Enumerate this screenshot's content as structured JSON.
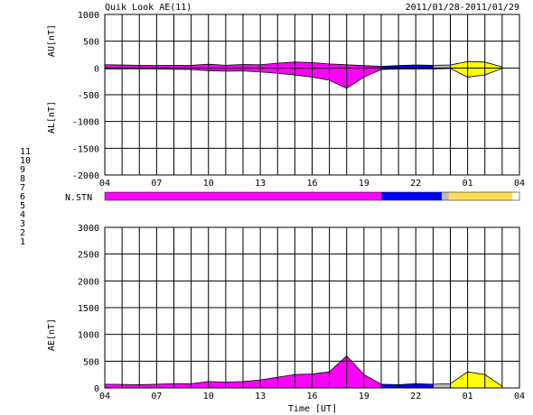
{
  "chart_data": [
    {
      "type": "area",
      "title": "Quik Look AE(11)",
      "date_range": "2011/01/28-2011/01/29",
      "xlabel": "",
      "ylabels": [
        "AU[nT]",
        "AL[nT]"
      ],
      "ylim": [
        -2000,
        1000
      ],
      "yticks": [
        "1000",
        "500",
        "0",
        "-500",
        "-1000",
        "-1500",
        "-2000"
      ],
      "xticks": [
        "04",
        "07",
        "10",
        "13",
        "16",
        "19",
        "22",
        "01",
        "04"
      ],
      "x_hours": [
        0,
        1,
        2,
        3,
        4,
        5,
        6,
        7,
        8,
        9,
        10,
        11,
        12,
        13,
        14,
        15,
        16,
        17,
        18,
        19,
        20,
        21,
        22,
        23
      ],
      "au_values": [
        60,
        55,
        50,
        48,
        50,
        50,
        70,
        50,
        65,
        60,
        90,
        110,
        100,
        75,
        60,
        45,
        30,
        45,
        55,
        50,
        55,
        120,
        110,
        20
      ],
      "al_values": [
        -20,
        -20,
        -15,
        -20,
        -25,
        -30,
        -50,
        -60,
        -55,
        -75,
        -100,
        -130,
        -170,
        -230,
        -380,
        -170,
        -30,
        -20,
        -20,
        -20,
        -10,
        -170,
        -130,
        -10
      ],
      "grid": true
    },
    {
      "type": "station_bar",
      "label": "N.STN",
      "legend": [
        "11",
        "10",
        "9",
        "8",
        "7",
        "6",
        "5",
        "4",
        "3",
        "2",
        "1"
      ],
      "legend_colors": [
        "#00e0ff",
        "#ff00ff",
        "#0000ff",
        "#ffdd55",
        "#00cc66",
        "#ff0000",
        "#bbbbbb",
        "#888888",
        "#00aaaa",
        "#cc0066",
        "#3333cc"
      ],
      "segments": [
        {
          "from": 0,
          "to": 16,
          "count": "10"
        },
        {
          "from": 16,
          "to": 19.5,
          "count": "9"
        },
        {
          "from": 19.5,
          "to": 19.9,
          "count": "5"
        },
        {
          "from": 19.9,
          "to": 23.6,
          "count": "8"
        }
      ]
    },
    {
      "type": "area",
      "xlabel": "Time [UT]",
      "ylabel": "AE[nT]",
      "ylim": [
        0,
        3000
      ],
      "yticks": [
        "3000",
        "2500",
        "2000",
        "1500",
        "1000",
        "500",
        "0"
      ],
      "xticks": [
        "04",
        "07",
        "10",
        "13",
        "16",
        "19",
        "22",
        "01",
        "04"
      ],
      "x_hours": [
        0,
        1,
        2,
        3,
        4,
        5,
        6,
        7,
        8,
        9,
        10,
        11,
        12,
        13,
        14,
        15,
        16,
        17,
        18,
        19,
        20,
        21,
        22,
        23
      ],
      "ae_values": [
        70,
        65,
        60,
        70,
        80,
        80,
        120,
        110,
        120,
        150,
        200,
        250,
        260,
        300,
        600,
        250,
        70,
        60,
        80,
        70,
        80,
        300,
        250,
        30
      ],
      "grid": true
    }
  ]
}
